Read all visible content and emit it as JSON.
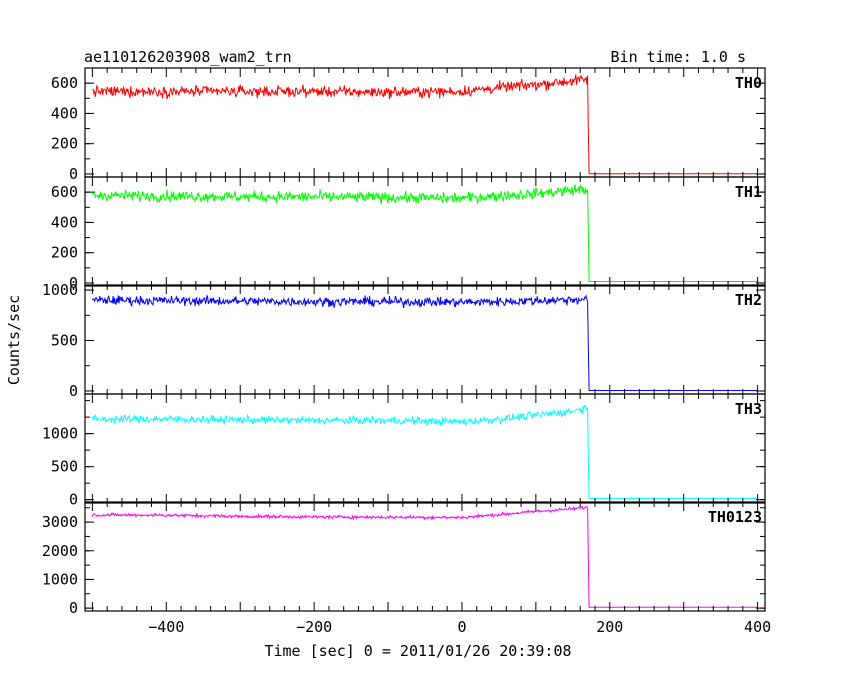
{
  "chart_data": {
    "type": "line",
    "title": "ae110126203908_wam2_trn",
    "subtitle": "Bin time: 1.0 s",
    "xlabel": "Time [sec] 0 = 2011/01/26 20:39:08",
    "ylabel": "Counts/sec",
    "xlim": [
      -510,
      410
    ],
    "x_ticks": [
      -400,
      -200,
      0,
      200,
      400
    ],
    "x_tick_labels": [
      "−400",
      "−200",
      "0",
      "200",
      "400"
    ],
    "data_range": [
      -500,
      400
    ],
    "drop_time": 172,
    "series": [
      {
        "name": "TH0",
        "color": "#ff0000",
        "ylim": [
          -20,
          700
        ],
        "y_ticks": [
          0,
          200,
          400,
          600
        ],
        "x": [
          -500,
          -400,
          -300,
          -200,
          -100,
          0,
          50,
          100,
          150,
          170,
          172,
          400
        ],
        "values": [
          545,
          545,
          545,
          545,
          540,
          545,
          570,
          590,
          615,
          625,
          2,
          2
        ],
        "noise": 35
      },
      {
        "name": "TH1",
        "color": "#00ff00",
        "ylim": [
          -20,
          700
        ],
        "y_ticks": [
          0,
          200,
          400,
          600
        ],
        "x": [
          -500,
          -400,
          -300,
          -200,
          -100,
          0,
          50,
          100,
          150,
          170,
          172,
          400
        ],
        "values": [
          580,
          575,
          570,
          570,
          565,
          560,
          575,
          590,
          615,
          620,
          10,
          10
        ],
        "noise": 35
      },
      {
        "name": "TH2",
        "color": "#0000ff",
        "ylim": [
          -30,
          1050
        ],
        "y_ticks": [
          0,
          500,
          1000
        ],
        "x": [
          -500,
          -400,
          -300,
          -200,
          -100,
          0,
          50,
          100,
          150,
          170,
          172,
          400
        ],
        "values": [
          900,
          895,
          890,
          885,
          885,
          880,
          885,
          895,
          905,
          910,
          5,
          5
        ],
        "noise": 45
      },
      {
        "name": "TH3",
        "color": "#00ffff",
        "ylim": [
          -50,
          1600
        ],
        "y_ticks": [
          0,
          500,
          1000
        ],
        "x": [
          -500,
          -400,
          -300,
          -200,
          -100,
          0,
          50,
          100,
          150,
          170,
          172,
          400
        ],
        "values": [
          1220,
          1220,
          1210,
          1200,
          1200,
          1180,
          1220,
          1280,
          1340,
          1400,
          20,
          20
        ],
        "noise": 55
      },
      {
        "name": "TH0123",
        "color": "#ff00ff",
        "ylim": [
          -100,
          3700
        ],
        "y_ticks": [
          0,
          1000,
          2000,
          3000
        ],
        "x": [
          -500,
          -400,
          -300,
          -200,
          -100,
          0,
          50,
          100,
          150,
          170,
          172,
          400
        ],
        "values": [
          3250,
          3240,
          3200,
          3180,
          3170,
          3160,
          3260,
          3370,
          3460,
          3520,
          30,
          30
        ],
        "noise": 55
      }
    ]
  }
}
